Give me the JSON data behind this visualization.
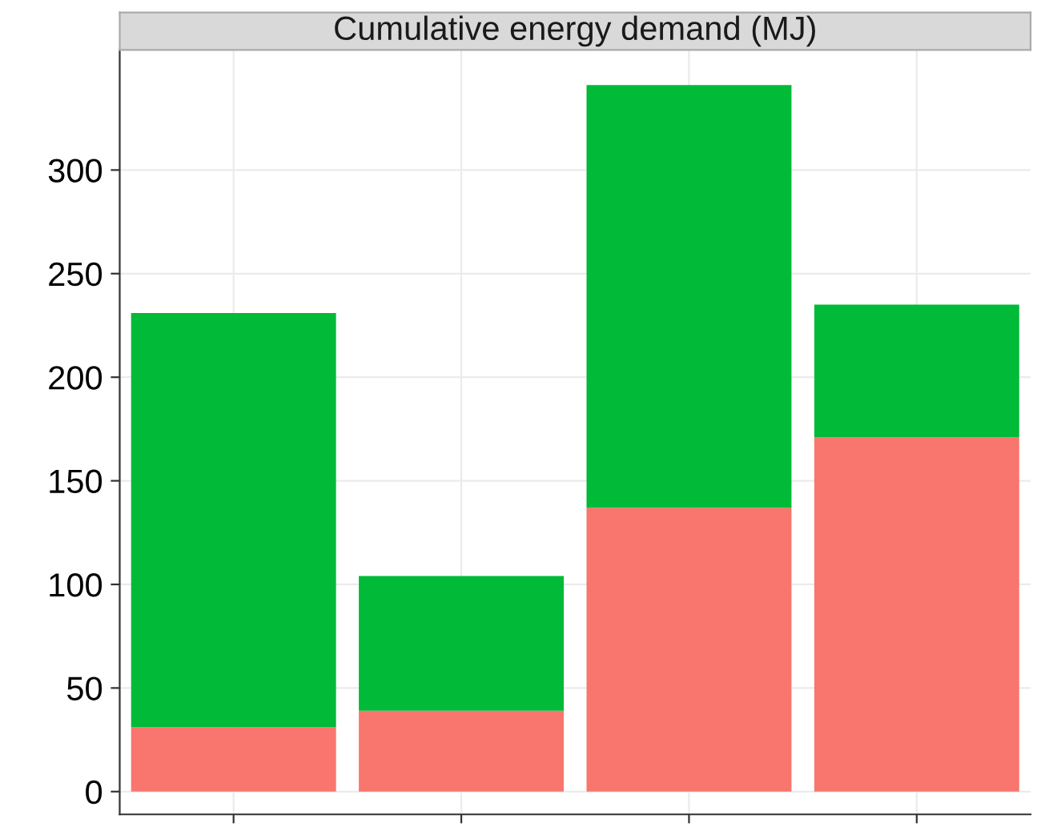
{
  "chart_data": {
    "type": "bar",
    "title": "Cumulative energy demand (MJ)",
    "categories": [
      null,
      null,
      null,
      null
    ],
    "stacked": true,
    "series": [
      {
        "color": "#f8766d",
        "values": [
          31,
          39,
          137,
          171
        ]
      },
      {
        "color": "#00ba38",
        "values": [
          200,
          65,
          204,
          64
        ]
      }
    ],
    "ylim": [
      -11,
      358
    ],
    "yticks": [
      0,
      50,
      100,
      150,
      200,
      250,
      300
    ],
    "grid": true
  }
}
